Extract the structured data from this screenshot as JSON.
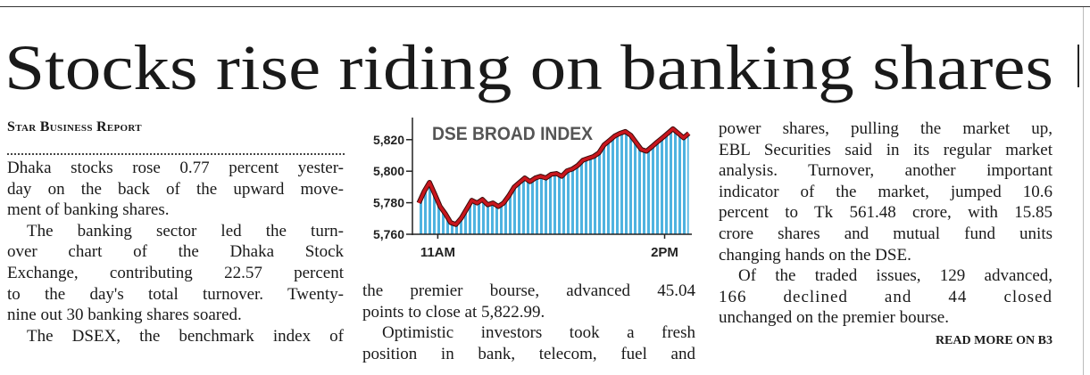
{
  "headline": "Stocks rise riding on banking shares",
  "byline": "Star Business Report",
  "columns": [
    {
      "paragraphs": [
        [
          "Dhaka stocks rose 0.77 percent yester-",
          "day on the back of the upward move-",
          "ment of banking shares."
        ],
        [
          "The banking sector led the turn-",
          "over chart of the Dhaka Stock",
          "Exchange, contributing 22.57 percent",
          "to the day's total turnover. Twenty-",
          "nine out 30 banking shares soared."
        ],
        [
          "The DSEX, the benchmark index of"
        ]
      ]
    },
    {
      "paragraphs": [
        [
          "the premier bourse, advanced 45.04",
          "points to close at 5,822.99."
        ],
        [
          "Optimistic investors took a fresh",
          "position in bank, telecom, fuel and"
        ]
      ]
    },
    {
      "paragraphs": [
        [
          "power shares, pulling the market up,",
          "EBL Securities said in its regular market",
          "analysis. Turnover, another important",
          "indicator of the market, jumped 10.6",
          "percent to Tk 561.48 crore, with 15.85",
          "crore shares and mutual fund units",
          "changing hands on the DSE."
        ],
        [
          "Of the traded issues, 129 advanced,",
          "166 declined and 44 closed",
          "unchanged on the premier bourse."
        ]
      ]
    }
  ],
  "read_more": "READ MORE ON B3",
  "chart_data": {
    "type": "area",
    "title": "DSE BROAD INDEX",
    "x": [
      10.75,
      10.82,
      10.89,
      10.96,
      11.03,
      11.1,
      11.17,
      11.24,
      11.31,
      11.38,
      11.45,
      11.52,
      11.59,
      11.66,
      11.73,
      11.8,
      11.87,
      11.94,
      12.01,
      12.08,
      12.15,
      12.22,
      12.29,
      12.36,
      12.43,
      12.5,
      12.57,
      12.64,
      12.71,
      12.78,
      12.85,
      12.92,
      12.99,
      13.06,
      13.13,
      13.2,
      13.27,
      13.34,
      13.41,
      13.48,
      13.55,
      13.62,
      13.69,
      13.76,
      13.83,
      13.9,
      13.97,
      14.04,
      14.11,
      14.18,
      14.25,
      14.32
    ],
    "series": [
      {
        "color": "#c8161d",
        "fill": "#4fb3e0",
        "values": [
          5779.8,
          5787.2,
          5792.9,
          5785.5,
          5777.6,
          5773,
          5767.4,
          5766.2,
          5770.2,
          5775.9,
          5781.5,
          5779.8,
          5782.1,
          5778.7,
          5779.8,
          5777.6,
          5779.8,
          5784.4,
          5790,
          5792.9,
          5795.7,
          5793.4,
          5795.7,
          5796.8,
          5795.7,
          5798,
          5798.5,
          5796.8,
          5800.2,
          5801.4,
          5803.6,
          5807,
          5808.2,
          5809.3,
          5811.6,
          5816.7,
          5819.5,
          5822.3,
          5824,
          5825.2,
          5822.9,
          5818.4,
          5813.8,
          5812.7,
          5815.5,
          5818.4,
          5821.2,
          5824,
          5826.9,
          5824,
          5821.2,
          5824
        ]
      }
    ],
    "xlim": [
      10.7,
      14.36
    ],
    "xticks": [
      {
        "value": 11,
        "label": "11AM"
      },
      {
        "value": 14,
        "label": "2PM"
      }
    ],
    "ylim": [
      5760,
      5834
    ],
    "yticks": [
      {
        "value": 5760,
        "label": "5,760"
      },
      {
        "value": 5780,
        "label": "5,780"
      },
      {
        "value": 5800,
        "label": "5,800"
      },
      {
        "value": 5820,
        "label": "5,820"
      }
    ]
  }
}
